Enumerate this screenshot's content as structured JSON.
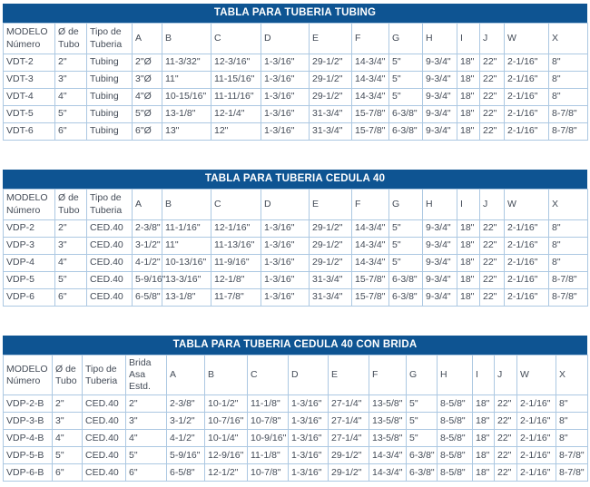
{
  "colors": {
    "title_bg": "#0E5492",
    "title_text": "#FFFFFF",
    "border": "#ACC8E2",
    "cell_text": "#434B57"
  },
  "tables": [
    {
      "title": "TABLA PARA TUBERIA TUBING",
      "columns": [
        "MODELO\nNúmero",
        "Ø de\nTubo",
        "Tipo de\nTuberia",
        "A",
        "B",
        "C",
        "D",
        "E",
        "F",
        "G",
        "H",
        "I",
        "J",
        "W",
        "X"
      ],
      "rows": [
        [
          "VDT-2",
          "2\"",
          "Tubing",
          "2\"Ø",
          "11-3/32\"",
          "12-3/16\"",
          "1-3/16\"",
          "29-1/2\"",
          "14-3/4\"",
          "5\"",
          "9-3/4\"",
          "18\"",
          "22\"",
          "2-1/16\"",
          "8\""
        ],
        [
          "VDT-3",
          "3\"",
          "Tubing",
          "3\"Ø",
          "11\"",
          "11-15/16\"",
          "1-3/16\"",
          "29-1/2\"",
          "14-3/4\"",
          "5\"",
          "9-3/4\"",
          "18\"",
          "22\"",
          "2-1/16\"",
          "8\""
        ],
        [
          "VDT-4",
          "4\"",
          "Tubing",
          "4\"Ø",
          "10-15/16\"",
          "11-11/16\"",
          "1-3/16\"",
          "29-1/2\"",
          "14-3/4\"",
          "5\"",
          "9-3/4\"",
          "18\"",
          "22\"",
          "2-1/16\"",
          "8\""
        ],
        [
          "VDT-5",
          "5\"",
          "Tubing",
          "5\"Ø",
          "13-1/8\"",
          "12-1/4\"",
          "1-3/16\"",
          "31-3/4\"",
          "15-7/8\"",
          "6-3/8\"",
          "9-3/4\"",
          "18\"",
          "22\"",
          "2-1/16\"",
          "8-7/8\""
        ],
        [
          "VDT-6",
          "6\"",
          "Tubing",
          "6\"Ø",
          "13\"",
          "12\"",
          "1-3/16\"",
          "31-3/4\"",
          "15-7/8\"",
          "6-3/8\"",
          "9-3/4\"",
          "18\"",
          "22\"",
          "2-1/16\"",
          "8-7/8\""
        ]
      ]
    },
    {
      "title": "TABLA PARA TUBERIA CEDULA 40",
      "columns": [
        "MODELO\nNúmero",
        "Ø de\nTubo",
        "Tipo de\nTuberia",
        "A",
        "B",
        "C",
        "D",
        "E",
        "F",
        "G",
        "H",
        "I",
        "J",
        "W",
        "X"
      ],
      "rows": [
        [
          "VDP-2",
          "2\"",
          "CED.40",
          "2-3/8\"",
          "11-1/16\"",
          "12-1/16\"",
          "1-3/16\"",
          "29-1/2\"",
          "14-3/4\"",
          "5\"",
          "9-3/4\"",
          "18\"",
          "22\"",
          "2-1/16\"",
          "8\""
        ],
        [
          "VDP-3",
          "3\"",
          "CED.40",
          "3-1/2\"",
          "11\"",
          "11-13/16\"",
          "1-3/16\"",
          "29-1/2\"",
          "14-3/4\"",
          "5\"",
          "9-3/4\"",
          "18\"",
          "22\"",
          "2-1/16\"",
          "8\""
        ],
        [
          "VDP-4",
          "4\"",
          "CED.40",
          "4-1/2\"",
          "10-13/16\"",
          "11-9/16\"",
          "1-3/16\"",
          "29-1/2\"",
          "14-3/4\"",
          "5\"",
          "9-3/4\"",
          "18\"",
          "22\"",
          "2-1/16\"",
          "8\""
        ],
        [
          "VDP-5",
          "5\"",
          "CED.40",
          "5-9/16\"",
          "13-3/16\"",
          "12-1/8\"",
          "1-3/16\"",
          "31-3/4\"",
          "15-7/8\"",
          "6-3/8\"",
          "9-3/4\"",
          "18\"",
          "22\"",
          "2-1/16\"",
          "8-7/8\""
        ],
        [
          "VDP-6",
          "6\"",
          "CED.40",
          "6-5/8\"",
          "13-1/8\"",
          "11-7/8\"",
          "1-3/16\"",
          "31-3/4\"",
          "15-7/8\"",
          "6-3/8\"",
          "9-3/4\"",
          "18\"",
          "22\"",
          "2-1/16\"",
          "8-7/8\""
        ]
      ]
    },
    {
      "title": "TABLA PARA TUBERIA CEDULA 40 CON BRIDA",
      "columns": [
        "MODELO\nNúmero",
        "Ø de\nTubo",
        "Tipo de\nTuberia",
        "Brida\nAsa Estd.",
        "A",
        "B",
        "C",
        "D",
        "E",
        "F",
        "G",
        "H",
        "I",
        "J",
        "W",
        "X"
      ],
      "rows": [
        [
          "VDP-2-B",
          "2\"",
          "CED.40",
          "2\"",
          "2-3/8\"",
          "10-1/2\"",
          "11-1/8\"",
          "1-3/16\"",
          "27-1/4\"",
          "13-5/8\"",
          "5\"",
          "8-5/8\"",
          "18\"",
          "22\"",
          "2-1/16\"",
          "8\""
        ],
        [
          "VDP-3-B",
          "3\"",
          "CED.40",
          "3\"",
          "3-1/2\"",
          "10-7/16\"",
          "10-7/8\"",
          "1-3/16\"",
          "27-1/4\"",
          "13-5/8\"",
          "5\"",
          "8-5/8\"",
          "18\"",
          "22\"",
          "2-1/16\"",
          "8\""
        ],
        [
          "VDP-4-B",
          "4\"",
          "CED.40",
          "4\"",
          "4-1/2\"",
          "10-1/4\"",
          "10-9/16\"",
          "1-3/16\"",
          "27-1/4\"",
          "13-5/8\"",
          "5\"",
          "8-5/8\"",
          "18\"",
          "22\"",
          "2-1/16\"",
          "8\""
        ],
        [
          "VDP-5-B",
          "5\"",
          "CED.40",
          "5\"",
          "5-9/16\"",
          "12-9/16\"",
          "11-1/8\"",
          "1-3/16\"",
          "29-1/2\"",
          "14-3/4\"",
          "6-3/8\"",
          "8-5/8\"",
          "18\"",
          "22\"",
          "2-1/16\"",
          "8-7/8\""
        ],
        [
          "VDP-6-B",
          "6\"",
          "CED.40",
          "6\"",
          "6-5/8\"",
          "12-1/2\"",
          "10-7/8\"",
          "1-3/16\"",
          "29-1/2\"",
          "14-3/4\"",
          "6-3/8\"",
          "8-5/8\"",
          "18\"",
          "22\"",
          "2-1/16\"",
          "8-7/8\""
        ]
      ]
    }
  ]
}
